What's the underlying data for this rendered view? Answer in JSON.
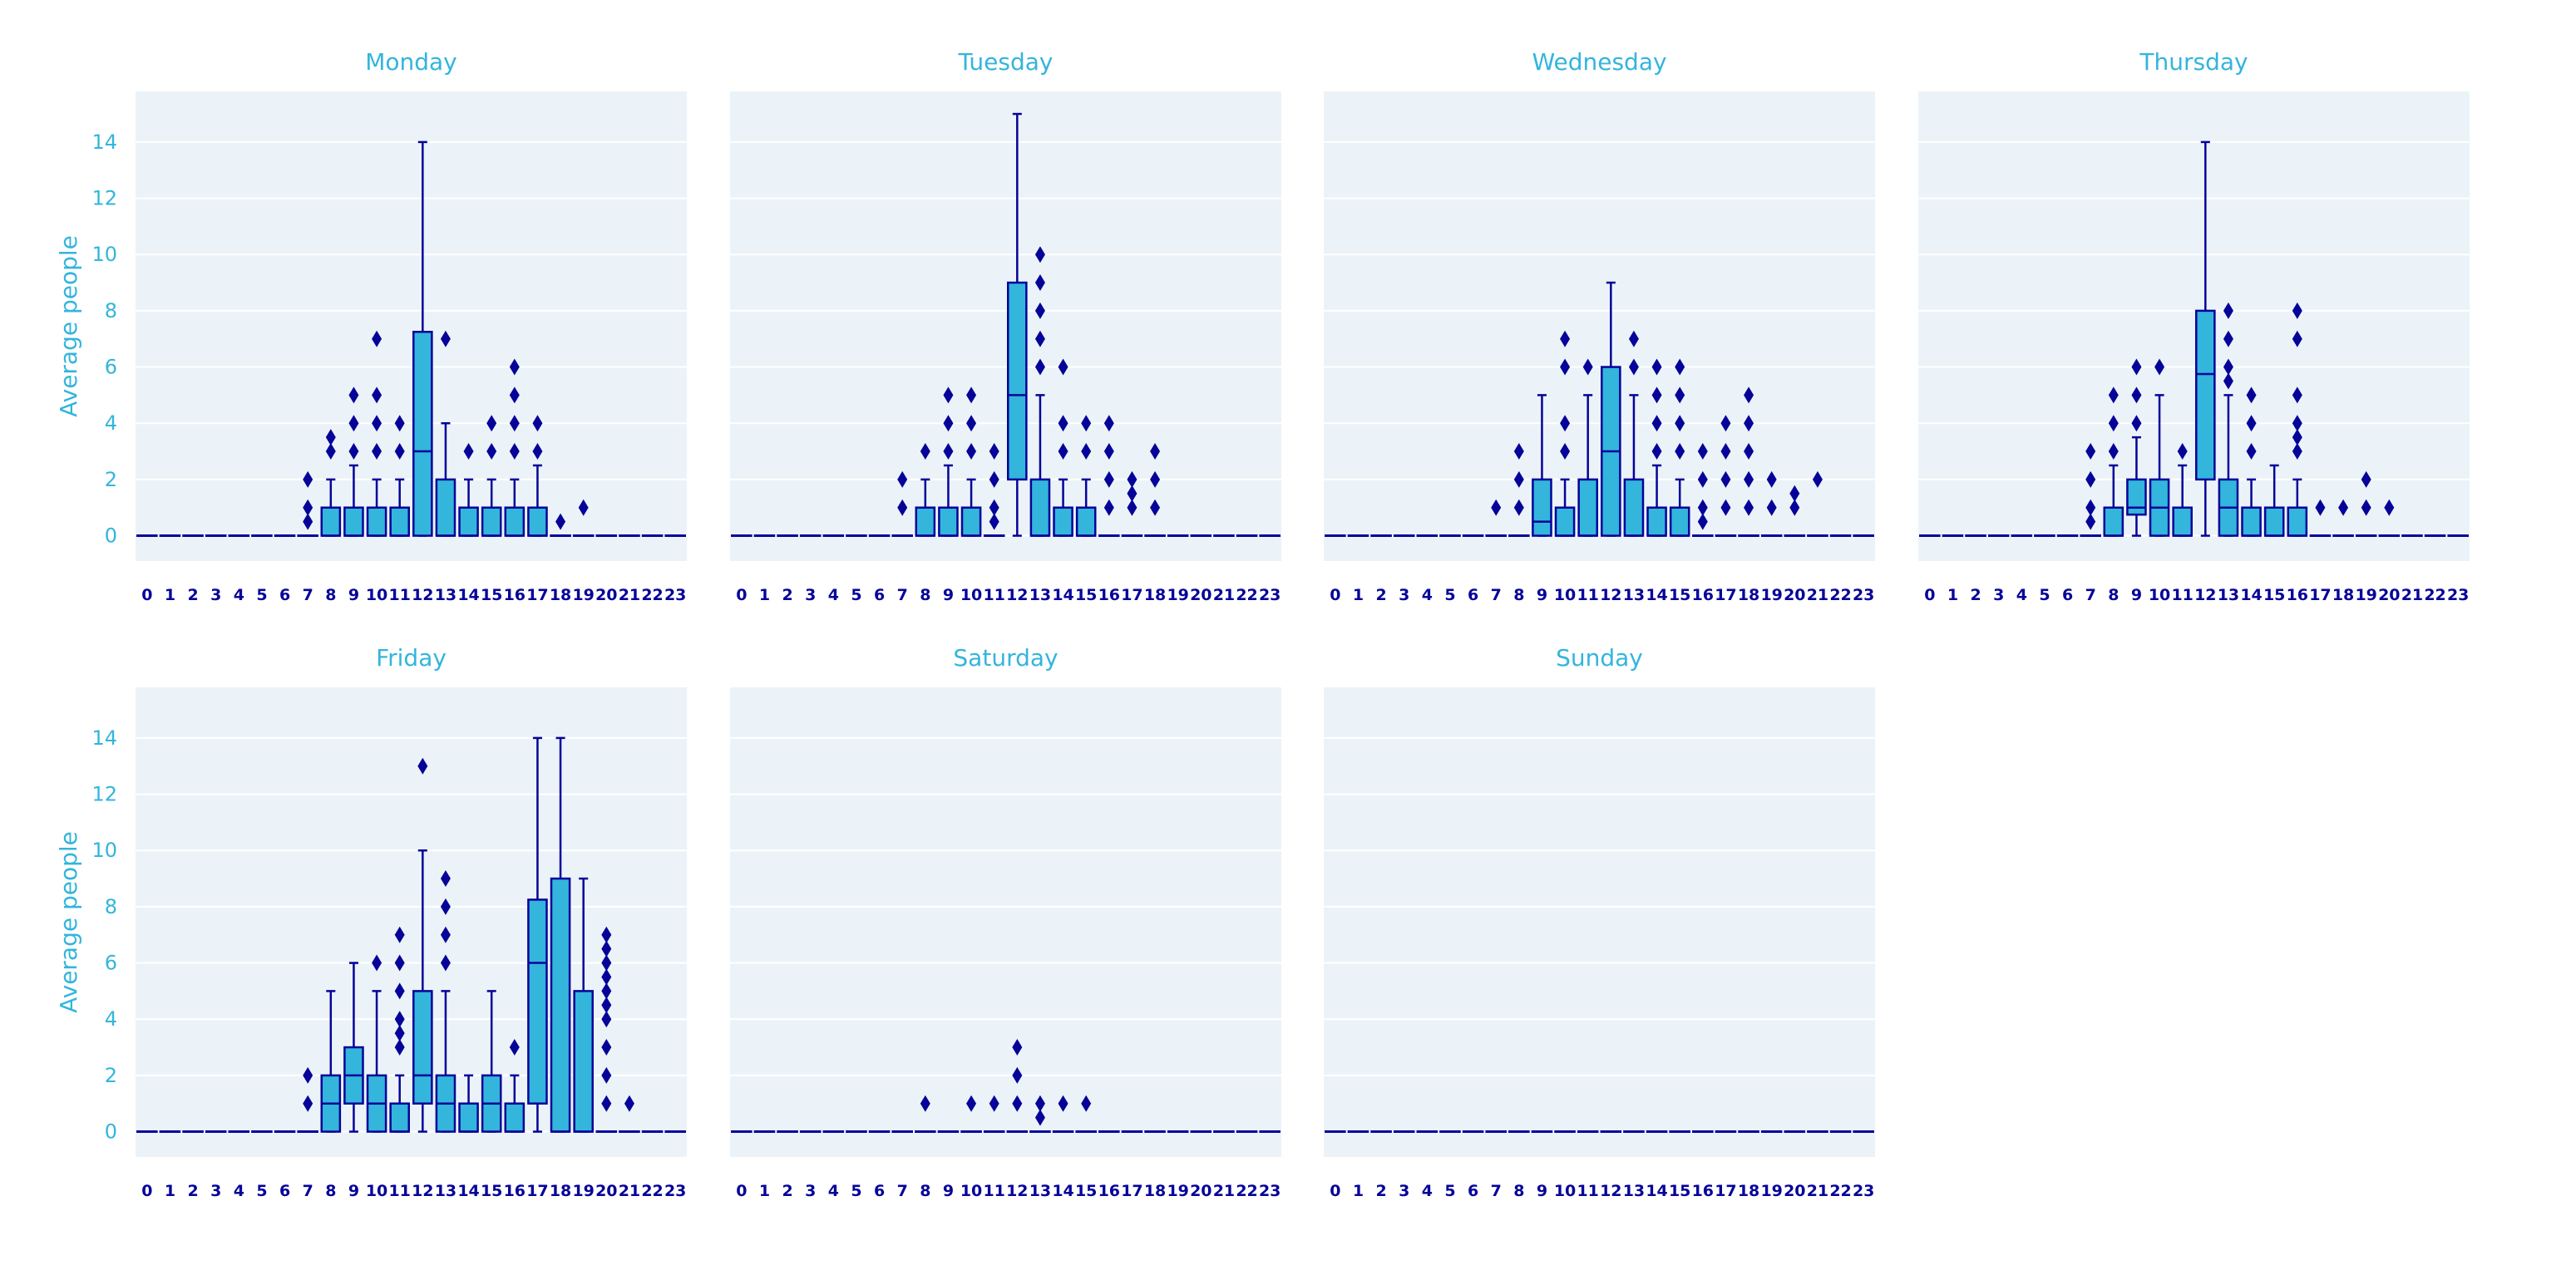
{
  "colors": {
    "accent": "#33b5dc",
    "box_fill": "#33b5dc",
    "outline": "#060399",
    "panel_bg": "#ebf3f8",
    "grid": "#ffffff"
  },
  "chart_data": [
    {
      "type": "box",
      "title": "Monday",
      "ylabel": "Average people",
      "ylim": [
        -0.9,
        15.8
      ],
      "yticks": [
        0,
        2,
        4,
        6,
        8,
        10,
        12,
        14
      ],
      "categories": [
        "0",
        "1",
        "2",
        "3",
        "4",
        "5",
        "6",
        "7",
        "8",
        "9",
        "10",
        "11",
        "12",
        "13",
        "14",
        "15",
        "16",
        "17",
        "18",
        "19",
        "20",
        "21",
        "22",
        "23"
      ],
      "boxes": [
        {
          "x": 8,
          "whislo": 0,
          "q1": 0,
          "med": 0,
          "q3": 1,
          "whishi": 2,
          "fliers": [
            3,
            3.5
          ]
        },
        {
          "x": 9,
          "whislo": 0,
          "q1": 0,
          "med": 0,
          "q3": 1,
          "whishi": 2.5,
          "fliers": [
            3,
            4,
            5
          ]
        },
        {
          "x": 10,
          "whislo": 0,
          "q1": 0,
          "med": 0,
          "q3": 1,
          "whishi": 2,
          "fliers": [
            3,
            4,
            5,
            7
          ]
        },
        {
          "x": 11,
          "whislo": 0,
          "q1": 0,
          "med": 0,
          "q3": 1,
          "whishi": 2,
          "fliers": [
            3,
            4
          ]
        },
        {
          "x": 12,
          "whislo": 0,
          "q1": 0,
          "med": 3,
          "q3": 7.25,
          "whishi": 14,
          "fliers": []
        },
        {
          "x": 13,
          "whislo": 0,
          "q1": 0,
          "med": 0,
          "q3": 2,
          "whishi": 4,
          "fliers": [
            7
          ]
        },
        {
          "x": 14,
          "whislo": 0,
          "q1": 0,
          "med": 0,
          "q3": 1,
          "whishi": 2,
          "fliers": [
            3
          ]
        },
        {
          "x": 15,
          "whislo": 0,
          "q1": 0,
          "med": 0,
          "q3": 1,
          "whishi": 2,
          "fliers": [
            3,
            4
          ]
        },
        {
          "x": 16,
          "whislo": 0,
          "q1": 0,
          "med": 0,
          "q3": 1,
          "whishi": 2,
          "fliers": [
            3,
            4,
            5,
            6
          ]
        },
        {
          "x": 17,
          "whislo": 0,
          "q1": 0,
          "med": 0,
          "q3": 1,
          "whishi": 2.5,
          "fliers": [
            3,
            4
          ]
        }
      ],
      "zero_fliers": [
        {
          "x": 7,
          "values": [
            0.5,
            1,
            2
          ]
        },
        {
          "x": 18,
          "values": [
            0.5
          ]
        },
        {
          "x": 19,
          "values": [
            1
          ]
        }
      ]
    },
    {
      "type": "box",
      "title": "Tuesday",
      "ylabel": "",
      "ylim": [
        -0.9,
        15.8
      ],
      "yticks": [
        0,
        2,
        4,
        6,
        8,
        10,
        12,
        14
      ],
      "categories": [
        "0",
        "1",
        "2",
        "3",
        "4",
        "5",
        "6",
        "7",
        "8",
        "9",
        "10",
        "11",
        "12",
        "13",
        "14",
        "15",
        "16",
        "17",
        "18",
        "19",
        "20",
        "21",
        "22",
        "23"
      ],
      "boxes": [
        {
          "x": 8,
          "whislo": 0,
          "q1": 0,
          "med": 0,
          "q3": 1,
          "whishi": 2,
          "fliers": [
            3
          ]
        },
        {
          "x": 9,
          "whislo": 0,
          "q1": 0,
          "med": 0,
          "q3": 1,
          "whishi": 2.5,
          "fliers": [
            3,
            4,
            5
          ]
        },
        {
          "x": 10,
          "whislo": 0,
          "q1": 0,
          "med": 0,
          "q3": 1,
          "whishi": 2,
          "fliers": [
            3,
            4,
            5
          ]
        },
        {
          "x": 12,
          "whislo": 0,
          "q1": 2,
          "med": 5,
          "q3": 9,
          "whishi": 15,
          "fliers": []
        },
        {
          "x": 13,
          "whislo": 0,
          "q1": 0,
          "med": 0,
          "q3": 2,
          "whishi": 5,
          "fliers": [
            6,
            7,
            8,
            9,
            10
          ]
        },
        {
          "x": 14,
          "whislo": 0,
          "q1": 0,
          "med": 0,
          "q3": 1,
          "whishi": 2,
          "fliers": [
            3,
            4,
            6
          ]
        },
        {
          "x": 15,
          "whislo": 0,
          "q1": 0,
          "med": 0,
          "q3": 1,
          "whishi": 2,
          "fliers": [
            3,
            4
          ]
        }
      ],
      "zero_fliers": [
        {
          "x": 7,
          "values": [
            1,
            2
          ]
        },
        {
          "x": 11,
          "values": [
            0.5,
            1,
            2,
            3
          ]
        },
        {
          "x": 16,
          "values": [
            1,
            2,
            3,
            4
          ]
        },
        {
          "x": 17,
          "values": [
            1,
            1.5,
            2
          ]
        },
        {
          "x": 18,
          "values": [
            1,
            2,
            3
          ]
        }
      ]
    },
    {
      "type": "box",
      "title": "Wednesday",
      "ylabel": "",
      "ylim": [
        -0.9,
        15.8
      ],
      "yticks": [
        0,
        2,
        4,
        6,
        8,
        10,
        12,
        14
      ],
      "categories": [
        "0",
        "1",
        "2",
        "3",
        "4",
        "5",
        "6",
        "7",
        "8",
        "9",
        "10",
        "11",
        "12",
        "13",
        "14",
        "15",
        "16",
        "17",
        "18",
        "19",
        "20",
        "21",
        "22",
        "23"
      ],
      "boxes": [
        {
          "x": 9,
          "whislo": 0,
          "q1": 0,
          "med": 0.5,
          "q3": 2,
          "whishi": 5,
          "fliers": []
        },
        {
          "x": 10,
          "whislo": 0,
          "q1": 0,
          "med": 0,
          "q3": 1,
          "whishi": 2,
          "fliers": [
            3,
            4,
            6,
            7
          ]
        },
        {
          "x": 11,
          "whislo": 0,
          "q1": 0,
          "med": 0,
          "q3": 2,
          "whishi": 5,
          "fliers": [
            6
          ]
        },
        {
          "x": 12,
          "whislo": 0,
          "q1": 0,
          "med": 3,
          "q3": 6,
          "whishi": 9,
          "fliers": []
        },
        {
          "x": 13,
          "whislo": 0,
          "q1": 0,
          "med": 0,
          "q3": 2,
          "whishi": 5,
          "fliers": [
            6,
            7
          ]
        },
        {
          "x": 14,
          "whislo": 0,
          "q1": 0,
          "med": 0,
          "q3": 1,
          "whishi": 2.5,
          "fliers": [
            3,
            4,
            5,
            6
          ]
        },
        {
          "x": 15,
          "whislo": 0,
          "q1": 0,
          "med": 0,
          "q3": 1,
          "whishi": 2,
          "fliers": [
            3,
            4,
            5,
            6
          ]
        }
      ],
      "zero_fliers": [
        {
          "x": 7,
          "values": [
            1
          ]
        },
        {
          "x": 8,
          "values": [
            1,
            2,
            3
          ]
        },
        {
          "x": 16,
          "values": [
            0.5,
            1,
            2,
            3
          ]
        },
        {
          "x": 17,
          "values": [
            1,
            2,
            3,
            4
          ]
        },
        {
          "x": 18,
          "values": [
            1,
            2,
            3,
            4,
            5
          ]
        },
        {
          "x": 19,
          "values": [
            1,
            2
          ]
        },
        {
          "x": 20,
          "values": [
            1,
            1.5
          ]
        },
        {
          "x": 21,
          "values": [
            2
          ]
        }
      ]
    },
    {
      "type": "box",
      "title": "Thursday",
      "ylabel": "",
      "ylim": [
        -0.9,
        15.8
      ],
      "yticks": [
        0,
        2,
        4,
        6,
        8,
        10,
        12,
        14
      ],
      "categories": [
        "0",
        "1",
        "2",
        "3",
        "4",
        "5",
        "6",
        "7",
        "8",
        "9",
        "10",
        "11",
        "12",
        "13",
        "14",
        "15",
        "16",
        "17",
        "18",
        "19",
        "20",
        "21",
        "22",
        "23"
      ],
      "boxes": [
        {
          "x": 8,
          "whislo": 0,
          "q1": 0,
          "med": 0,
          "q3": 1,
          "whishi": 2.5,
          "fliers": [
            3,
            4,
            5
          ]
        },
        {
          "x": 9,
          "whislo": 0,
          "q1": 0.75,
          "med": 1,
          "q3": 2,
          "whishi": 3.5,
          "fliers": [
            4,
            5,
            6
          ]
        },
        {
          "x": 10,
          "whislo": 0,
          "q1": 0,
          "med": 1,
          "q3": 2,
          "whishi": 5,
          "fliers": [
            6
          ]
        },
        {
          "x": 11,
          "whislo": 0,
          "q1": 0,
          "med": 0,
          "q3": 1,
          "whishi": 2.5,
          "fliers": [
            3
          ]
        },
        {
          "x": 12,
          "whislo": 0,
          "q1": 2,
          "med": 5.75,
          "q3": 8,
          "whishi": 14,
          "fliers": []
        },
        {
          "x": 13,
          "whislo": 0,
          "q1": 0,
          "med": 1,
          "q3": 2,
          "whishi": 5,
          "fliers": [
            5.5,
            6,
            7,
            8
          ]
        },
        {
          "x": 14,
          "whislo": 0,
          "q1": 0,
          "med": 0,
          "q3": 1,
          "whishi": 2,
          "fliers": [
            3,
            4,
            5
          ]
        },
        {
          "x": 15,
          "whislo": 0,
          "q1": 0,
          "med": 0,
          "q3": 1,
          "whishi": 2.5,
          "fliers": []
        },
        {
          "x": 16,
          "whislo": 0,
          "q1": 0,
          "med": 0,
          "q3": 1,
          "whishi": 2,
          "fliers": [
            3,
            3.5,
            4,
            5,
            7,
            8
          ]
        }
      ],
      "zero_fliers": [
        {
          "x": 7,
          "values": [
            0.5,
            1,
            2,
            3
          ]
        },
        {
          "x": 17,
          "values": [
            1
          ]
        },
        {
          "x": 18,
          "values": [
            1
          ]
        },
        {
          "x": 19,
          "values": [
            1,
            2
          ]
        },
        {
          "x": 20,
          "values": [
            1
          ]
        }
      ]
    },
    {
      "type": "box",
      "title": "Friday",
      "ylabel": "Average people",
      "ylim": [
        -0.9,
        15.8
      ],
      "yticks": [
        0,
        2,
        4,
        6,
        8,
        10,
        12,
        14
      ],
      "categories": [
        "0",
        "1",
        "2",
        "3",
        "4",
        "5",
        "6",
        "7",
        "8",
        "9",
        "10",
        "11",
        "12",
        "13",
        "14",
        "15",
        "16",
        "17",
        "18",
        "19",
        "20",
        "21",
        "22",
        "23"
      ],
      "boxes": [
        {
          "x": 8,
          "whislo": 0,
          "q1": 0,
          "med": 1,
          "q3": 2,
          "whishi": 5,
          "fliers": []
        },
        {
          "x": 9,
          "whislo": 0,
          "q1": 1,
          "med": 2,
          "q3": 3,
          "whishi": 6,
          "fliers": []
        },
        {
          "x": 10,
          "whislo": 0,
          "q1": 0,
          "med": 1,
          "q3": 2,
          "whishi": 5,
          "fliers": [
            6
          ]
        },
        {
          "x": 11,
          "whislo": 0,
          "q1": 0,
          "med": 0,
          "q3": 1,
          "whishi": 2,
          "fliers": [
            3,
            3.5,
            4,
            5,
            6,
            7
          ]
        },
        {
          "x": 12,
          "whislo": 0,
          "q1": 1,
          "med": 2,
          "q3": 5,
          "whishi": 10,
          "fliers": [
            13
          ]
        },
        {
          "x": 13,
          "whislo": 0,
          "q1": 0,
          "med": 1,
          "q3": 2,
          "whishi": 5,
          "fliers": [
            6,
            7,
            8,
            9
          ]
        },
        {
          "x": 14,
          "whislo": 0,
          "q1": 0,
          "med": 0,
          "q3": 1,
          "whishi": 2,
          "fliers": []
        },
        {
          "x": 15,
          "whislo": 0,
          "q1": 0,
          "med": 1,
          "q3": 2,
          "whishi": 5,
          "fliers": []
        },
        {
          "x": 16,
          "whislo": 0,
          "q1": 0,
          "med": 0,
          "q3": 1,
          "whishi": 2,
          "fliers": [
            3
          ]
        },
        {
          "x": 17,
          "whislo": 0,
          "q1": 1,
          "med": 6,
          "q3": 8.25,
          "whishi": 14,
          "fliers": []
        },
        {
          "x": 18,
          "whislo": 0,
          "q1": 0,
          "med": 0,
          "q3": 9,
          "whishi": 14,
          "fliers": []
        },
        {
          "x": 19,
          "whislo": 0,
          "q1": 0,
          "med": 0,
          "q3": 5,
          "whishi": 9,
          "fliers": []
        }
      ],
      "zero_fliers": [
        {
          "x": 7,
          "values": [
            1,
            2
          ]
        },
        {
          "x": 20,
          "values": [
            1,
            2,
            3,
            4,
            4.5,
            5,
            5.5,
            6,
            6.5,
            7
          ]
        },
        {
          "x": 21,
          "values": [
            1
          ]
        }
      ]
    },
    {
      "type": "box",
      "title": "Saturday",
      "ylabel": "",
      "ylim": [
        -0.9,
        15.8
      ],
      "yticks": [
        0,
        2,
        4,
        6,
        8,
        10,
        12,
        14
      ],
      "categories": [
        "0",
        "1",
        "2",
        "3",
        "4",
        "5",
        "6",
        "7",
        "8",
        "9",
        "10",
        "11",
        "12",
        "13",
        "14",
        "15",
        "16",
        "17",
        "18",
        "19",
        "20",
        "21",
        "22",
        "23"
      ],
      "boxes": [],
      "zero_fliers": [
        {
          "x": 8,
          "values": [
            1
          ]
        },
        {
          "x": 10,
          "values": [
            1
          ]
        },
        {
          "x": 11,
          "values": [
            1
          ]
        },
        {
          "x": 12,
          "values": [
            1,
            2,
            3
          ]
        },
        {
          "x": 13,
          "values": [
            0.5,
            1
          ]
        },
        {
          "x": 14,
          "values": [
            1
          ]
        },
        {
          "x": 15,
          "values": [
            1
          ]
        }
      ]
    },
    {
      "type": "box",
      "title": "Sunday",
      "ylabel": "",
      "ylim": [
        -0.9,
        15.8
      ],
      "yticks": [
        0,
        2,
        4,
        6,
        8,
        10,
        12,
        14
      ],
      "categories": [
        "0",
        "1",
        "2",
        "3",
        "4",
        "5",
        "6",
        "7",
        "8",
        "9",
        "10",
        "11",
        "12",
        "13",
        "14",
        "15",
        "16",
        "17",
        "18",
        "19",
        "20",
        "21",
        "22",
        "23"
      ],
      "boxes": [],
      "zero_fliers": []
    }
  ]
}
